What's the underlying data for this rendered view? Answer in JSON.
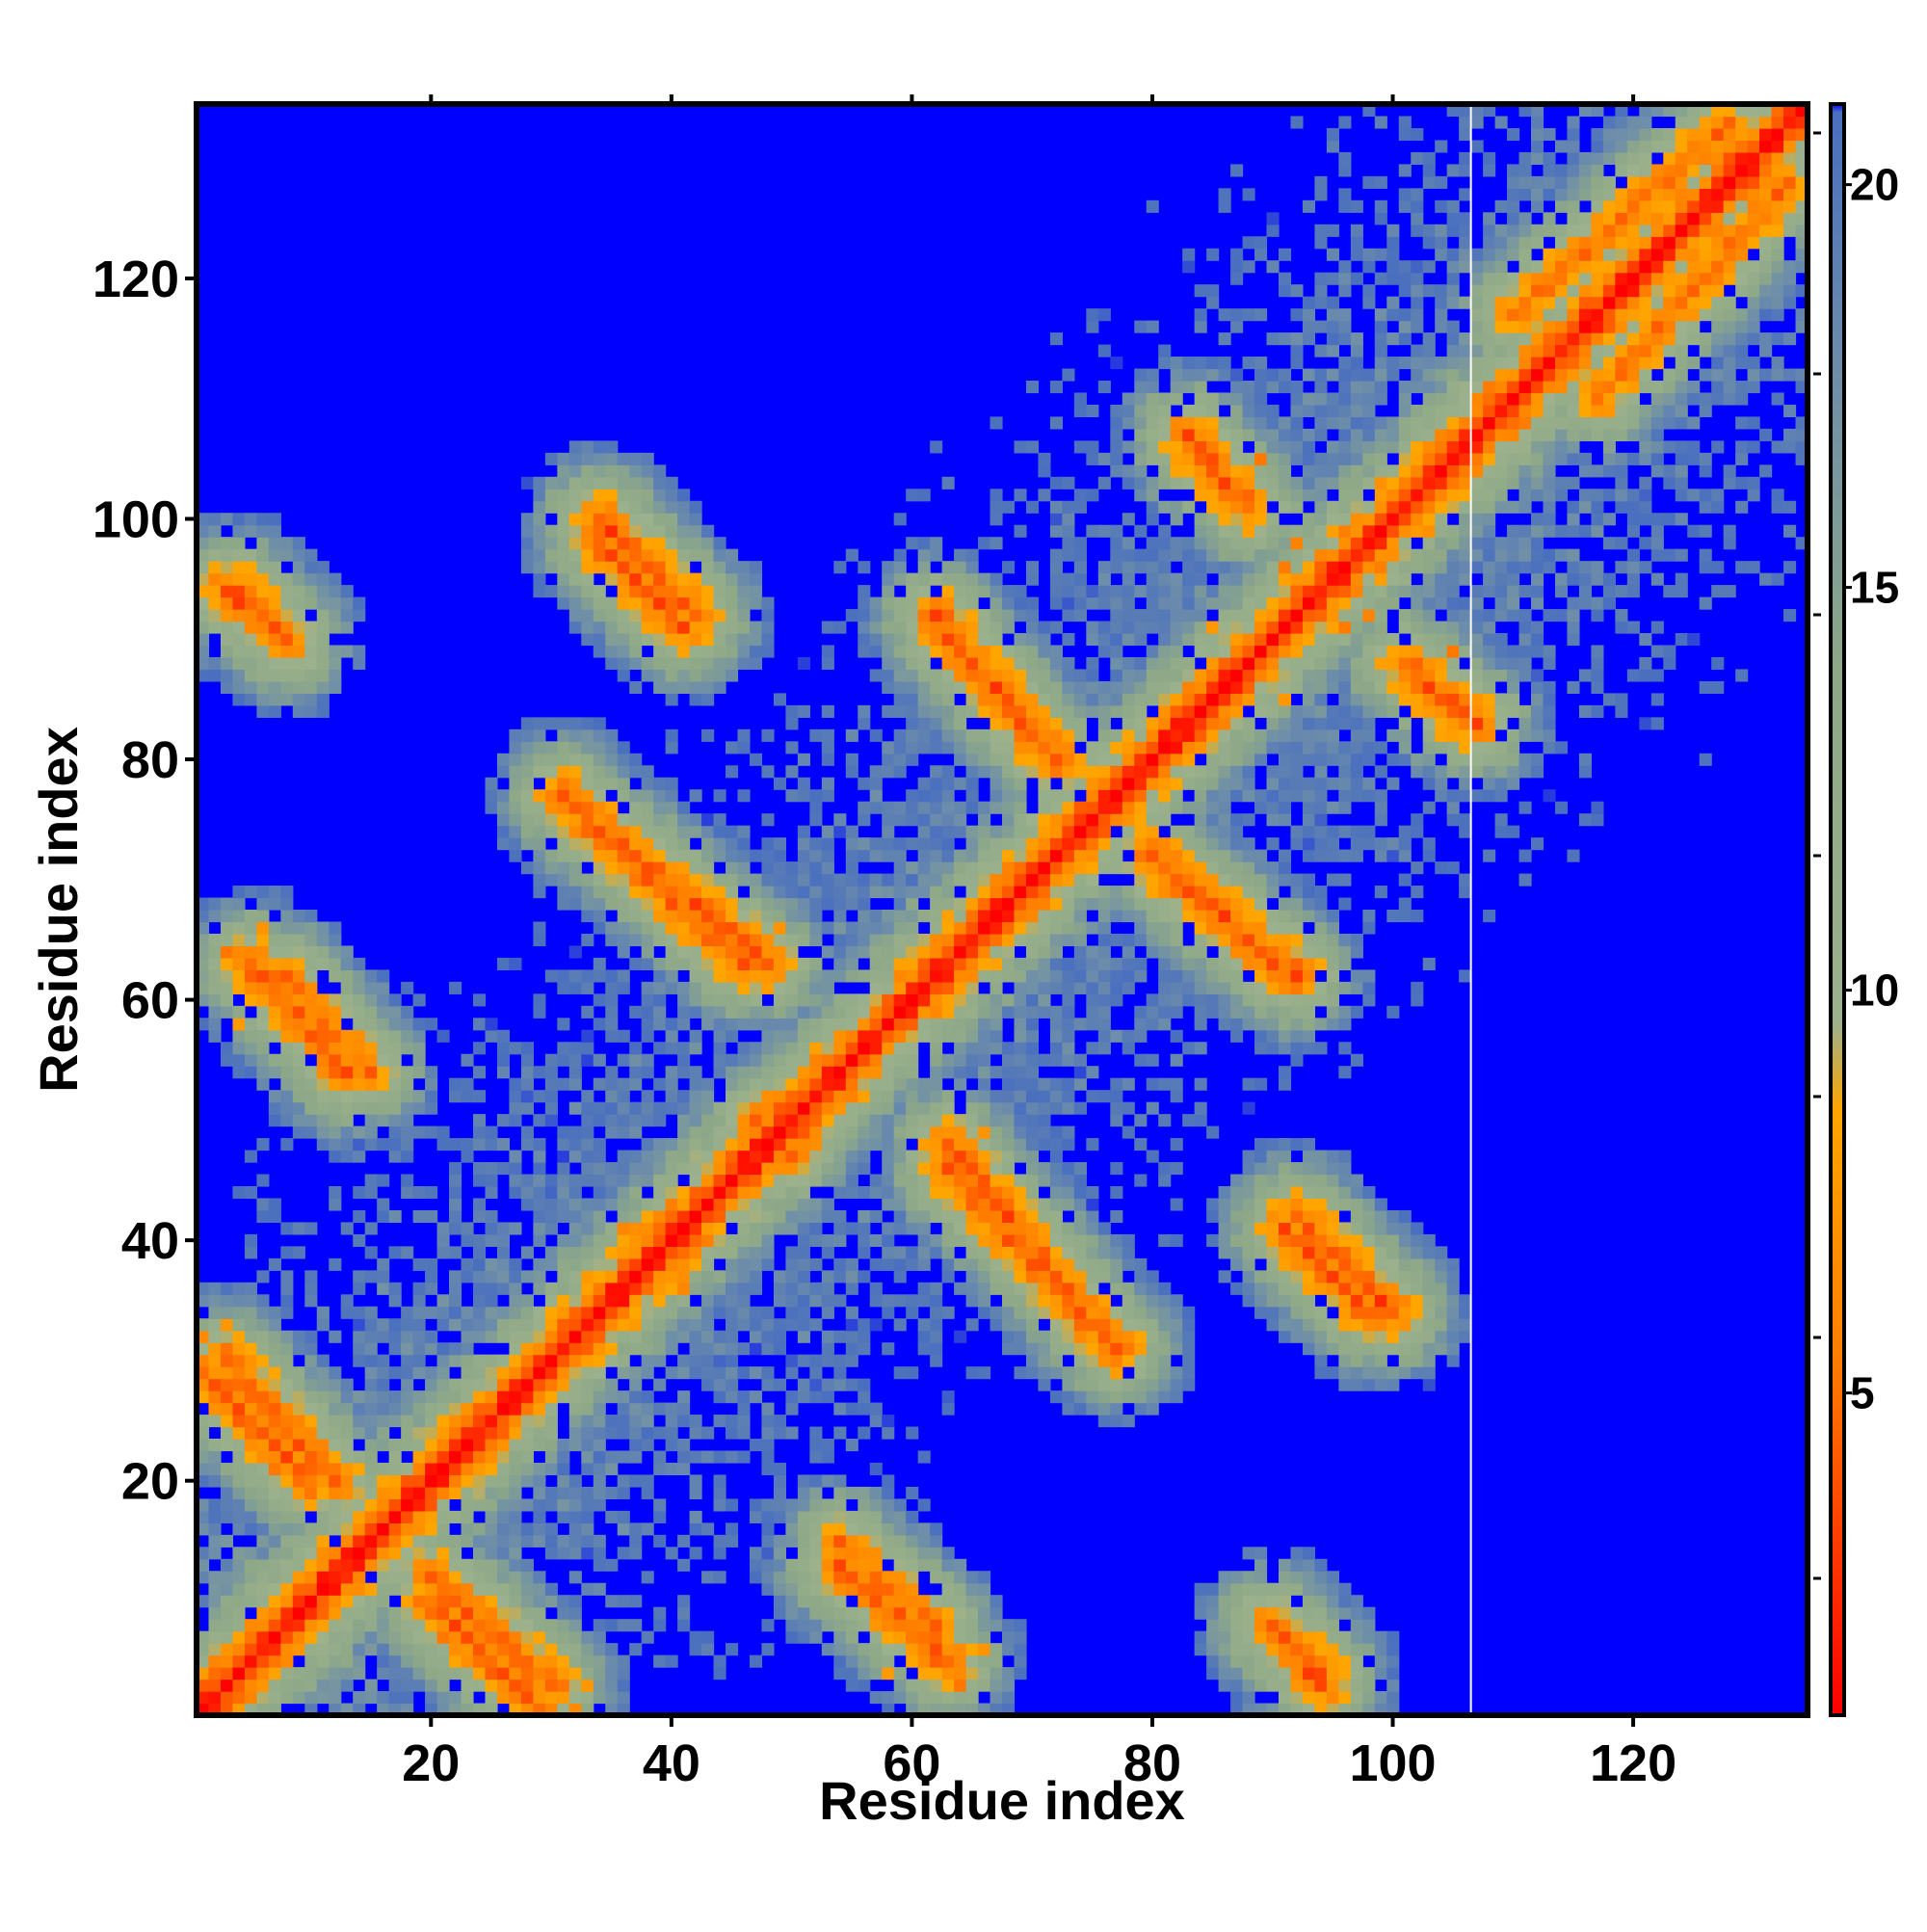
{
  "chart_data": {
    "type": "heatmap",
    "title": "",
    "xlabel": "Residue index",
    "ylabel": "Residue index",
    "n_residues": 134,
    "xlim": [
      1,
      134
    ],
    "ylim": [
      1,
      134
    ],
    "x_ticks": [
      20,
      40,
      60,
      80,
      100,
      120
    ],
    "y_ticks": [
      20,
      40,
      60,
      80,
      100,
      120
    ],
    "colorbar": {
      "min": 1,
      "max": 21,
      "ticks": [
        5,
        10,
        15,
        20
      ],
      "stops": [
        {
          "value": 1,
          "color": "#ff0000"
        },
        {
          "value": 5.5,
          "color": "#ff7f00"
        },
        {
          "value": 8.5,
          "color": "#ffa500"
        },
        {
          "value": 9.6,
          "color": "#9cb18c"
        },
        {
          "value": 14,
          "color": "#8ea888"
        },
        {
          "value": 17.5,
          "color": "#6f8fa8"
        },
        {
          "value": 20.9,
          "color": "#4a6fbf"
        },
        {
          "value": 21,
          "color": "#0000ff"
        }
      ]
    },
    "gap_column": 107,
    "contact_bands": [
      {
        "kind": "anti",
        "from": [
          3,
          30
        ],
        "to": [
          12,
          20
        ],
        "min": 4
      },
      {
        "kind": "anti",
        "from": [
          20,
          10
        ],
        "to": [
          29,
          1
        ],
        "min": 4
      },
      {
        "kind": "anti",
        "from": [
          5,
          63
        ],
        "to": [
          13,
          54
        ],
        "min": 4
      },
      {
        "kind": "anti",
        "from": [
          3,
          94
        ],
        "to": [
          7,
          91
        ],
        "min": 4
      },
      {
        "kind": "anti",
        "from": [
          31,
          77
        ],
        "to": [
          46,
          63
        ],
        "min": 4
      },
      {
        "kind": "anti",
        "from": [
          34,
          98
        ],
        "to": [
          41,
          91
        ],
        "min": 4
      },
      {
        "kind": "anti",
        "from": [
          63,
          48
        ],
        "to": [
          75,
          33
        ],
        "min": 4
      },
      {
        "kind": "anti",
        "from": [
          62,
          92
        ],
        "to": [
          71,
          81
        ],
        "min": 4
      },
      {
        "kind": "anti",
        "from": [
          80,
          72
        ],
        "to": [
          90,
          63
        ],
        "min": 4
      },
      {
        "kind": "anti",
        "from": [
          83,
          107
        ],
        "to": [
          88,
          101
        ],
        "min": 4
      },
      {
        "kind": "anti",
        "from": [
          92,
          42
        ],
        "to": [
          100,
          34
        ],
        "min": 4
      },
      {
        "kind": "anti",
        "from": [
          101,
          88
        ],
        "to": [
          105,
          84
        ],
        "min": 4
      },
      {
        "kind": "anti",
        "from": [
          90,
          8
        ],
        "to": [
          94,
          4
        ],
        "min": 4
      },
      {
        "kind": "anti",
        "from": [
          54,
          15
        ],
        "to": [
          62,
          8
        ],
        "min": 5
      },
      {
        "kind": "parallel",
        "from": [
          47,
          50
        ],
        "to": [
          57,
          56
        ],
        "min": 5
      },
      {
        "kind": "parallel",
        "from": [
          110,
          117
        ],
        "to": [
          128,
          133
        ],
        "min": 5
      }
    ]
  }
}
